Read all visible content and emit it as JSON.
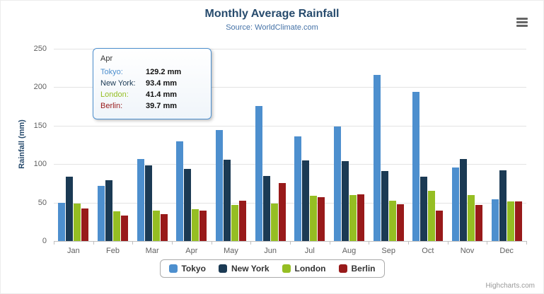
{
  "credits": "Highcharts.com",
  "chart_data": {
    "type": "bar",
    "title": "Monthly Average Rainfall",
    "subtitle": "Source: WorldClimate.com",
    "categories": [
      "Jan",
      "Feb",
      "Mar",
      "Apr",
      "May",
      "Jun",
      "Jul",
      "Aug",
      "Sep",
      "Oct",
      "Nov",
      "Dec"
    ],
    "series": [
      {
        "name": "Tokyo",
        "color": "#4D8FCE",
        "values": [
          49.9,
          71.5,
          106.4,
          129.2,
          144.0,
          176.0,
          135.6,
          148.5,
          216.4,
          194.1,
          95.6,
          54.4
        ]
      },
      {
        "name": "New York",
        "color": "#1B3A54",
        "values": [
          83.6,
          78.8,
          98.5,
          93.4,
          106.0,
          84.5,
          105.0,
          104.3,
          91.2,
          83.5,
          106.6,
          92.3
        ]
      },
      {
        "name": "London",
        "color": "#95BE23",
        "values": [
          48.9,
          38.8,
          39.3,
          41.4,
          47.0,
          48.3,
          59.0,
          59.6,
          52.4,
          65.2,
          59.3,
          51.2
        ]
      },
      {
        "name": "Berlin",
        "color": "#981A1A",
        "values": [
          42.4,
          33.2,
          34.5,
          39.7,
          52.6,
          75.5,
          57.4,
          60.4,
          47.6,
          39.1,
          46.8,
          51.1
        ]
      }
    ],
    "xlabel": "",
    "ylabel": "Rainfall (mm)",
    "ylim": [
      0,
      250
    ],
    "yticks": [
      0,
      50,
      100,
      150,
      200,
      250
    ],
    "grid": true,
    "legend_position": "bottom"
  },
  "tooltip": {
    "header": "Apr",
    "rows": [
      {
        "label": "Tokyo:",
        "value": "129.2 mm"
      },
      {
        "label": "New York:",
        "value": "93.4 mm"
      },
      {
        "label": "London:",
        "value": "41.4 mm"
      },
      {
        "label": "Berlin:",
        "value": "39.7 mm"
      }
    ]
  }
}
